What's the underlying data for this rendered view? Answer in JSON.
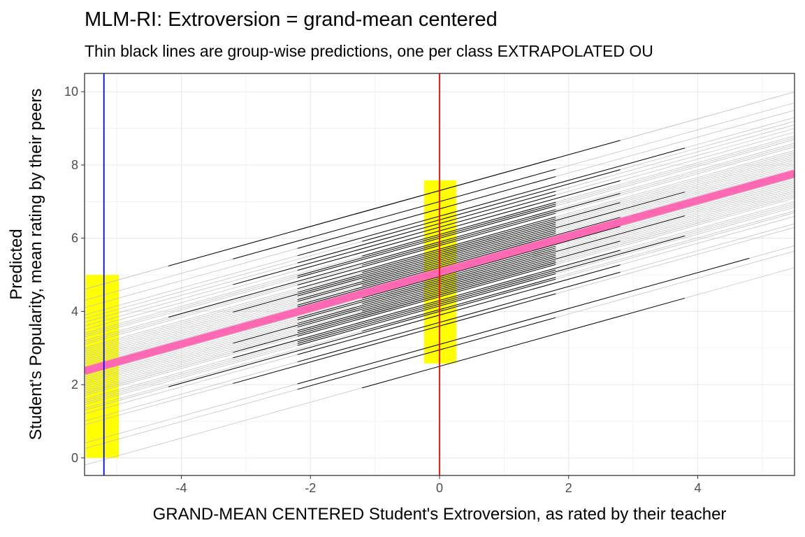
{
  "chart_data": {
    "type": "line",
    "title": "MLM-RI: Extroversion = grand-mean centered",
    "subtitle": "Thin black lines are group-wise predictions, one per class EXTRAPOLATED OU",
    "xlabel": "GRAND-MEAN CENTERED Student's Extroversion, as rated by their teacher",
    "ylabel_line1": "Predicted",
    "ylabel_line2": "Student's Popularity, mean rating by their peers",
    "xlim": [
      -5.5,
      5.5
    ],
    "ylim": [
      -0.48,
      10.5
    ],
    "xticks": [
      -4,
      -2,
      0,
      2,
      4
    ],
    "yticks": [
      0,
      2,
      4,
      6,
      8,
      10
    ],
    "grid": true,
    "slope": 0.49,
    "fixed_effect": {
      "intercept": 5.07,
      "color": "#ff69b4"
    },
    "vlines": [
      {
        "x": -5.2,
        "color": "#0000ff"
      },
      {
        "x": 0,
        "color": "#ff0000"
      }
    ],
    "highlight_rects": [
      {
        "xmin": -5.48,
        "xmax": -4.97,
        "ymin": 0,
        "ymax": 5.0,
        "color": "#ffff00"
      },
      {
        "xmin": -0.24,
        "xmax": 0.26,
        "ymin": 2.58,
        "ymax": 7.58,
        "color": "#ffff00"
      }
    ],
    "classes": [
      [
        2.5,
        -1.2,
        3.8
      ],
      [
        3.1,
        -2.2,
        4.8
      ],
      [
        3.6,
        -3.2,
        1.8
      ],
      [
        3.9,
        -2.2,
        2.8
      ],
      [
        4.05,
        -1.2,
        1.8
      ],
      [
        4.15,
        -2.2,
        1.8
      ],
      [
        4.25,
        -2.2,
        1.8
      ],
      [
        4.3,
        -3.2,
        2.8
      ],
      [
        4.4,
        -2.2,
        1.8
      ],
      [
        4.45,
        -1.2,
        1.8
      ],
      [
        4.5,
        -2.2,
        1.8
      ],
      [
        4.55,
        -2.2,
        2.8
      ],
      [
        4.6,
        -1.2,
        1.8
      ],
      [
        4.65,
        -2.2,
        1.8
      ],
      [
        4.7,
        -3.2,
        1.8
      ],
      [
        4.75,
        -2.2,
        3.8
      ],
      [
        4.8,
        -1.2,
        1.8
      ],
      [
        4.85,
        -2.2,
        1.8
      ],
      [
        4.9,
        -2.2,
        1.8
      ],
      [
        4.95,
        -1.2,
        2.8
      ],
      [
        5.0,
        -2.2,
        1.8
      ],
      [
        5.05,
        -3.2,
        1.8
      ],
      [
        5.1,
        -2.2,
        1.8
      ],
      [
        5.15,
        -1.2,
        1.8
      ],
      [
        5.2,
        -2.2,
        2.8
      ],
      [
        5.25,
        -2.2,
        1.8
      ],
      [
        5.3,
        -1.2,
        1.8
      ],
      [
        5.35,
        -2.2,
        1.8
      ],
      [
        5.4,
        -2.2,
        3.8
      ],
      [
        5.45,
        -1.2,
        1.8
      ],
      [
        5.5,
        -2.2,
        1.8
      ],
      [
        5.55,
        -3.2,
        1.8
      ],
      [
        5.6,
        -2.2,
        2.8
      ],
      [
        5.65,
        -1.2,
        1.8
      ],
      [
        5.7,
        -2.2,
        1.8
      ],
      [
        5.8,
        -2.2,
        1.8
      ],
      [
        5.85,
        -1.2,
        2.8
      ],
      [
        5.9,
        -4.2,
        1.8
      ],
      [
        6.0,
        -2.2,
        1.8
      ],
      [
        6.05,
        -2.2,
        1.8
      ],
      [
        6.1,
        -1.2,
        1.8
      ],
      [
        6.2,
        -2.2,
        2.8
      ],
      [
        6.3,
        -3.2,
        1.8
      ],
      [
        6.4,
        -2.2,
        1.8
      ],
      [
        6.5,
        -1.2,
        2.8
      ],
      [
        6.6,
        -2.2,
        3.8
      ],
      [
        6.8,
        -2.2,
        1.8
      ],
      [
        7.0,
        -3.2,
        1.8
      ],
      [
        7.3,
        -2.2,
        2.8
      ],
      [
        7.3,
        -4.2,
        1.8
      ],
      [
        4.45,
        -3.2,
        1.8
      ],
      [
        4.2,
        -2.2,
        3.8
      ],
      [
        3.7,
        -2.2,
        2.8
      ],
      [
        5.0,
        -1.2,
        4.8
      ],
      [
        2.95,
        -2.2,
        1.8
      ],
      [
        4.0,
        -4.2,
        1.8
      ]
    ]
  }
}
